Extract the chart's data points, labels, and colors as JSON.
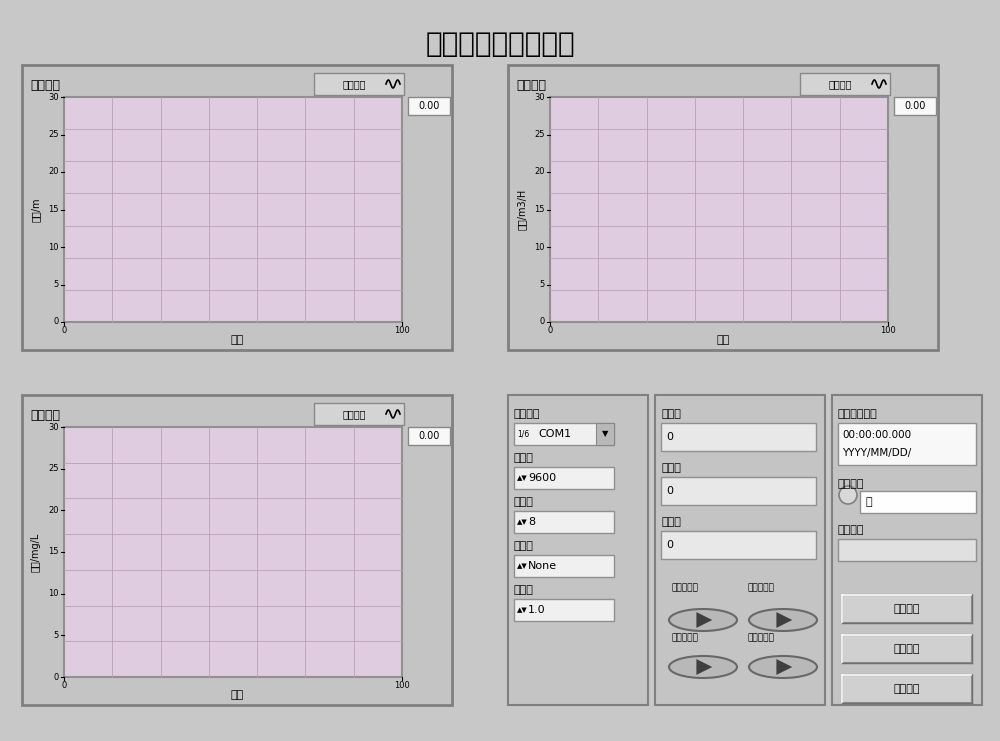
{
  "title": "悬浮物自动采样系统",
  "title_fontsize": 20,
  "bg_color": "#c8c8c8",
  "panel_bg": "#c0c0c0",
  "plot_bg_color": "#e0cce0",
  "grid_color": "#b8a0b8",
  "white_field": "#f0f0f0",
  "light_field": "#e8e8e8",
  "chart1_label": "深度曲线",
  "chart1_ylabel": "深度/m",
  "chart1_xlabel": "时间",
  "chart1_button": "深度曲线",
  "chart2_label": "流量曲线",
  "chart2_ylabel": "流量/m3/H",
  "chart2_xlabel": "时间",
  "chart2_button": "流量曲线",
  "chart3_label": "浓度曲线",
  "chart3_ylabel": "浓度/mg/L",
  "chart3_xlabel": "时间",
  "chart3_button": "浓度曲线",
  "yticks": [
    0,
    5,
    10,
    15,
    20,
    25,
    30
  ],
  "xticks_labels": [
    "0",
    "100"
  ],
  "value_display": "0.00",
  "serial_label": "串口选择",
  "serial_value": "COM1",
  "baud_label": "波特率",
  "baud_value": "9600",
  "databit_label": "数据位",
  "databit_value": "8",
  "parity_label": "校验位",
  "parity_value": "None",
  "stopbit_label": "停止位",
  "stopbit_value": "1.0",
  "depth_label": "深度值",
  "depth_value": "0",
  "conc_label": "浓度值",
  "conc_value": "0",
  "flow_label": "流量值",
  "flow_value": "0",
  "time_label": "采样当前时间",
  "time_value1": "00:00:00.000",
  "time_value2": "YYYY/MM/DD/",
  "site_label1": "采样地点",
  "site_value1": "无",
  "site_label2": "采样地点",
  "site_value2": "",
  "btn_read_depth": "读取深度值",
  "btn_read_conc": "读取浓度值",
  "btn_read_flow": "读取流量值",
  "btn_write_db": "写入数据库",
  "btn_start": "开始测量",
  "btn_stop": "停止测量",
  "btn_add": "添加新表"
}
